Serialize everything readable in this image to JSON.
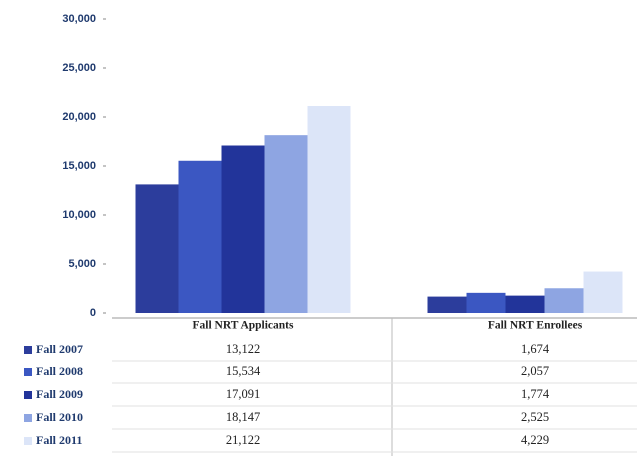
{
  "chart_data": {
    "type": "bar",
    "categories": [
      "Fall NRT Applicants",
      "Fall NRT Enrollees"
    ],
    "series": [
      {
        "name": "Fall 2007",
        "color": "#2c3d9c",
        "values": [
          13122,
          1674
        ],
        "value_labels": [
          "13,122",
          "1,674"
        ]
      },
      {
        "name": "Fall 2008",
        "color": "#3b57c2",
        "values": [
          15534,
          2057
        ],
        "value_labels": [
          "15,534",
          "2,057"
        ]
      },
      {
        "name": "Fall 2009",
        "color": "#22349a",
        "values": [
          17091,
          1774
        ],
        "value_labels": [
          "17,091",
          "1,774"
        ]
      },
      {
        "name": "Fall 2010",
        "color": "#8ea5e2",
        "values": [
          18147,
          2525
        ],
        "value_labels": [
          "18,147",
          "2,525"
        ]
      },
      {
        "name": "Fall 2011",
        "color": "#dce5f8",
        "values": [
          21122,
          4229
        ],
        "value_labels": [
          "21,122",
          "4,229"
        ]
      }
    ],
    "ylim": [
      0,
      30000
    ],
    "yticks": [
      0,
      {
        "value": 5000,
        "label": "5,000"
      },
      {
        "value": 10000,
        "label": "10,000"
      },
      {
        "value": 15000,
        "label": "15,000"
      },
      {
        "value": 20000,
        "label": "20,000"
      },
      {
        "value": 25000,
        "label": "25,000"
      },
      {
        "value": 30000,
        "label": "30,000"
      }
    ],
    "grid": false
  }
}
